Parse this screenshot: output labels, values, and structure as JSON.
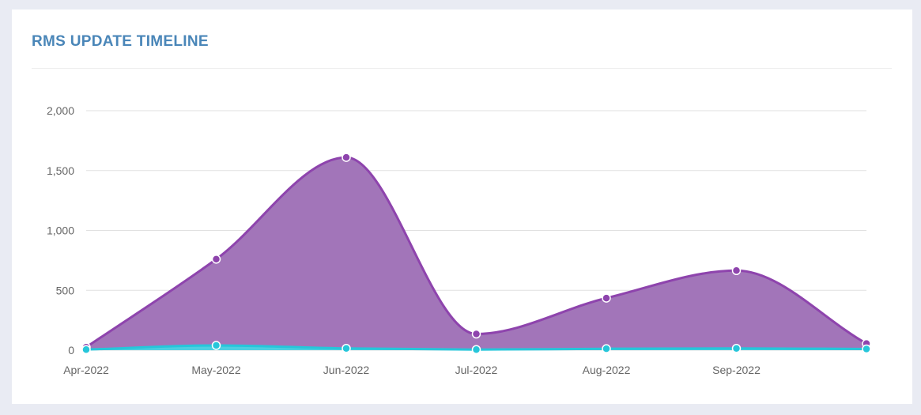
{
  "card": {
    "title": "RMS UPDATE TIMELINE"
  },
  "chart_data": {
    "type": "area",
    "title": "RMS UPDATE TIMELINE",
    "xlabel": "",
    "ylabel": "",
    "categories": [
      "Apr-2022",
      "May-2022",
      "Jun-2022",
      "Jul-2022",
      "Aug-2022",
      "Sep-2022",
      ""
    ],
    "ylim": [
      0,
      2000
    ],
    "yticks": [
      0,
      500,
      1000,
      1500,
      2000
    ],
    "ytick_labels": [
      "0",
      "500",
      "1,000",
      "1,500",
      "2,000"
    ],
    "grid": true,
    "legend": "none",
    "series": [
      {
        "values": [
          25,
          760,
          1610,
          135,
          435,
          665,
          55
        ],
        "color": "#8e44ad",
        "fill": "#a275b9"
      },
      {
        "values": [
          5,
          40,
          15,
          5,
          12,
          15,
          10
        ],
        "color": "#26c6da",
        "fill": "#4dd0e1"
      }
    ]
  }
}
